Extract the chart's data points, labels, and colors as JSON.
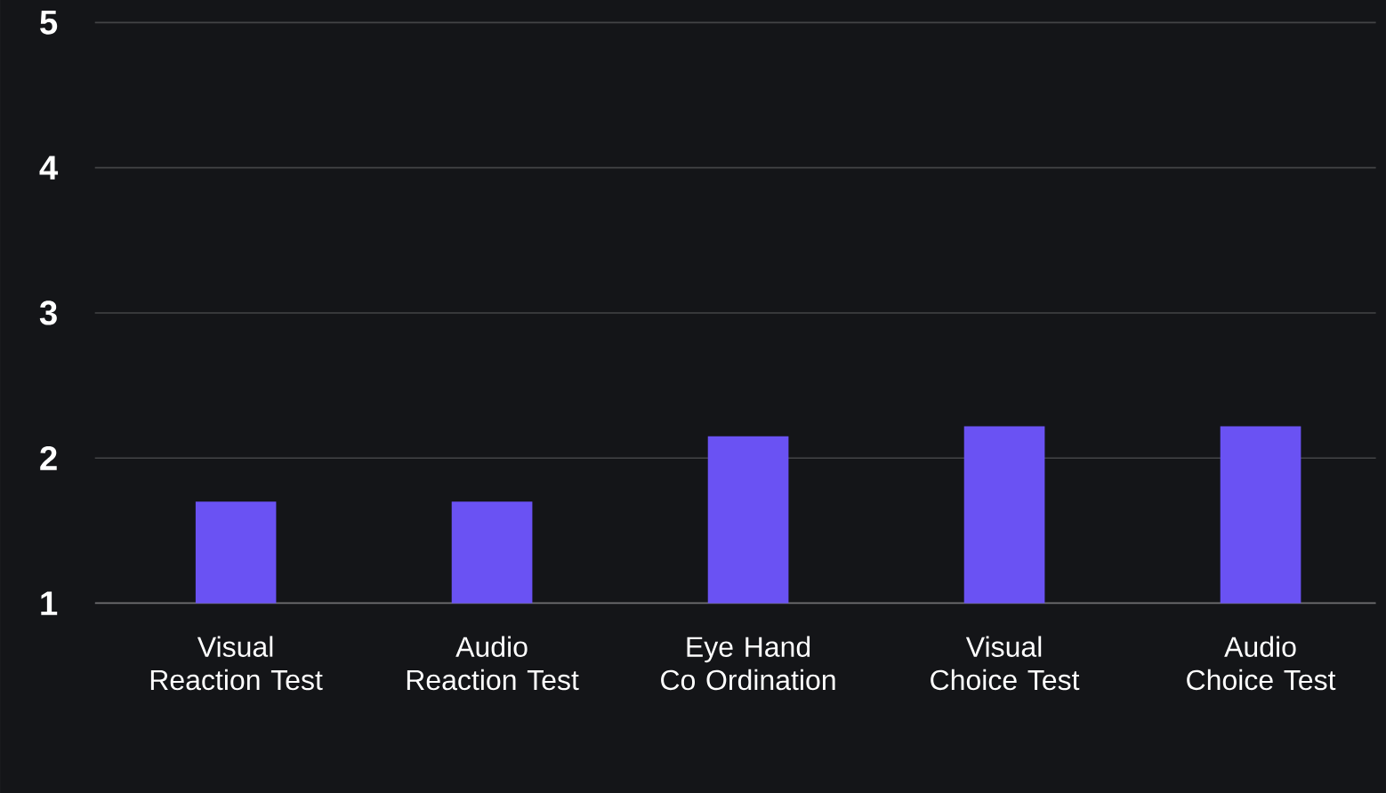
{
  "chart_data": {
    "type": "bar",
    "categories": [
      "Visual\nReaction Test",
      "Audio\nReaction Test",
      "Eye Hand\nCo Ordination",
      "Visual\nChoice Test",
      "Audio\nChoice Test"
    ],
    "values": [
      1.7,
      1.7,
      2.15,
      2.22,
      2.22
    ],
    "color": "#6a52f3",
    "ylim": [
      1,
      5
    ],
    "yticks": [
      1,
      2,
      3,
      4,
      5
    ],
    "grid": "y"
  }
}
